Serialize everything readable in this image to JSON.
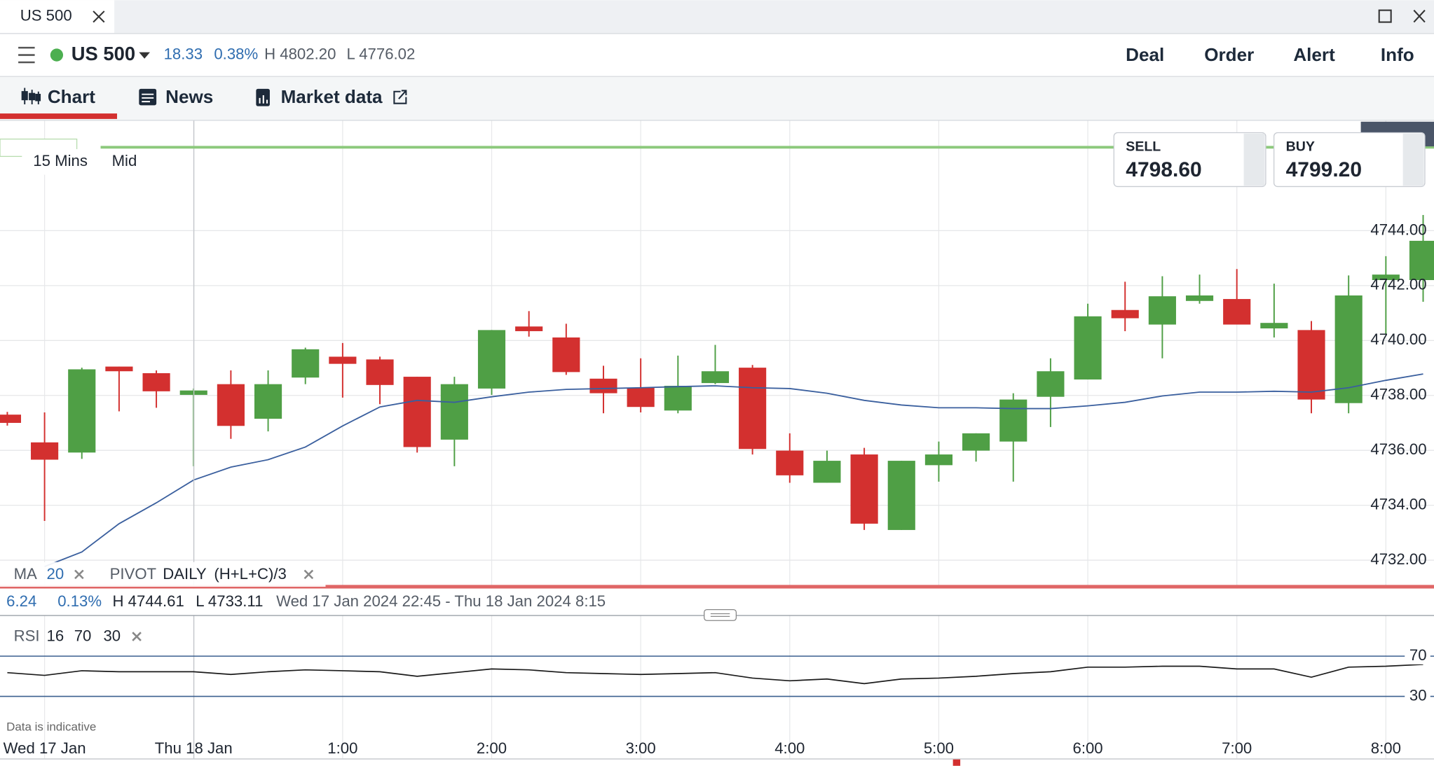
{
  "window": {
    "tab": "US 500"
  },
  "header": {
    "instrument": "US 500",
    "change": "18.33",
    "change_pct": "0.38%",
    "high": "H 4802.20",
    "low": "L 4776.02",
    "actions": [
      "Deal",
      "Order",
      "Alert",
      "Info"
    ]
  },
  "tabs": [
    "Chart",
    "News",
    "Market data"
  ],
  "chart_settings": {
    "interval": "15 Mins",
    "price_type": "Mid"
  },
  "quote": {
    "sell_label": "SELL",
    "sell": "4798.60",
    "buy_label": "BUY",
    "buy": "4799.20"
  },
  "indicators": {
    "ma": {
      "label": "MA",
      "period": "20"
    },
    "pivot": {
      "label": "PIVOT",
      "period": "DAILY",
      "formula": "(H+L+C)/3"
    },
    "rsi": {
      "label": "RSI",
      "period": "16",
      "upper": "70",
      "lower": "30"
    }
  },
  "range_stats": {
    "change": "6.24",
    "change_pct": "0.13%",
    "high": "H 4744.61",
    "low": "L 4733.11",
    "period": "Wed 17 Jan 2024 22:45 - Thu 18 Jan 2024 8:15"
  },
  "footer": {
    "note": "Data is indicative"
  },
  "chart_data": [
    {
      "type": "candlestick",
      "categories": [
        null,
        "Wed 17 Jan",
        null,
        null,
        null,
        "Thu 18 Jan",
        null,
        null,
        null,
        "1:00",
        null,
        null,
        null,
        "2:00",
        null,
        null,
        null,
        "3:00",
        null,
        null,
        null,
        "4:00",
        null,
        null,
        null,
        "5:00",
        null,
        null,
        null,
        "6:00",
        null,
        null,
        null,
        "7:00",
        null,
        null,
        null,
        "8:00",
        null
      ],
      "open": [
        4737.3,
        4736.29,
        4735.92,
        4739.05,
        4738.81,
        4738.02,
        4738.41,
        4737.15,
        4738.65,
        4739.41,
        4739.31,
        4738.68,
        4736.39,
        4738.25,
        4740.51,
        4740.11,
        4738.61,
        4738.28,
        4737.45,
        4738.45,
        4739.01,
        4735.99,
        4734.82,
        4735.85,
        4733.1,
        4735.46,
        4735.99,
        4736.32,
        4737.95,
        4738.58,
        4741.11,
        4740.58,
        4741.44,
        4741.51,
        4740.44,
        4740.38,
        4737.72,
        4742.2,
        4742.2
      ],
      "high": [
        4737.4,
        4737.38,
        4739.01,
        4739.05,
        4738.91,
        4738.25,
        4738.91,
        4738.91,
        4739.74,
        4739.91,
        4739.41,
        4738.68,
        4738.68,
        4740.38,
        4741.07,
        4740.61,
        4739.08,
        4739.35,
        4739.45,
        4739.84,
        4739.11,
        4736.62,
        4735.99,
        4736.09,
        4735.62,
        4736.32,
        4736.62,
        4738.08,
        4739.35,
        4741.34,
        4742.14,
        4742.34,
        4742.4,
        4742.6,
        4742.07,
        4740.71,
        4742.37,
        4743.07,
        4744.57
      ],
      "low": [
        4736.9,
        4733.43,
        4735.69,
        4737.42,
        4737.55,
        4735.42,
        4736.42,
        4736.69,
        4738.41,
        4737.92,
        4737.68,
        4735.92,
        4735.42,
        4738.02,
        4740.14,
        4738.75,
        4737.35,
        4737.38,
        4737.35,
        4738.41,
        4735.85,
        4734.82,
        4734.82,
        4733.1,
        4733.1,
        4734.86,
        4735.59,
        4734.86,
        4736.85,
        4738.58,
        4740.34,
        4739.35,
        4741.34,
        4740.58,
        4740.11,
        4737.35,
        4737.35,
        4740.24,
        4741.41
      ],
      "close": [
        4737.0,
        4735.66,
        4738.95,
        4738.88,
        4738.15,
        4738.18,
        4736.89,
        4738.41,
        4739.68,
        4739.15,
        4738.38,
        4736.12,
        4738.41,
        4740.38,
        4740.34,
        4738.85,
        4738.08,
        4737.58,
        4738.35,
        4738.88,
        4736.05,
        4735.09,
        4735.62,
        4733.33,
        4735.62,
        4735.85,
        4736.62,
        4737.85,
        4738.88,
        4740.88,
        4740.81,
        4741.61,
        4741.64,
        4740.58,
        4740.64,
        4737.85,
        4741.64,
        4742.4,
        4743.63
      ],
      "up_color": "#4f9f45",
      "down_color": "#d3302f",
      "ma": {
        "color": "#3a5f9e",
        "values": [
          null,
          4731.77,
          4732.3,
          4733.33,
          4734.09,
          4734.92,
          4735.39,
          4735.66,
          4736.12,
          4736.89,
          4737.58,
          4737.82,
          4737.75,
          4737.95,
          4738.12,
          4738.22,
          4738.25,
          4738.28,
          4738.32,
          4738.35,
          4738.28,
          4738.25,
          4738.08,
          4737.82,
          4737.65,
          4737.55,
          4737.55,
          4737.52,
          4737.52,
          4737.62,
          4737.75,
          4737.98,
          4738.12,
          4738.12,
          4738.15,
          4738.12,
          4738.28,
          4738.55,
          4738.78
        ]
      },
      "ylim": [
        4731.1,
        4748
      ],
      "yticks": [
        {
          "value": 4732,
          "label": "4732.00"
        },
        {
          "value": 4734,
          "label": "4734.00"
        },
        {
          "value": 4736,
          "label": "4736.00"
        },
        {
          "value": 4738,
          "label": "4738.00"
        },
        {
          "value": 4740,
          "label": "4740.00"
        },
        {
          "value": 4742,
          "label": "4742.00"
        },
        {
          "value": 4744,
          "label": "4744.00"
        }
      ],
      "grid": true
    },
    {
      "type": "line",
      "values": [
        53.6,
        50.9,
        55.5,
        54.5,
        54.5,
        54.5,
        51.8,
        54.5,
        56.4,
        55.5,
        54.5,
        50.0,
        53.6,
        57.3,
        56.4,
        53.6,
        52.7,
        51.8,
        52.7,
        53.6,
        48.2,
        45.5,
        47.3,
        42.7,
        47.3,
        48.2,
        50.0,
        52.7,
        54.5,
        59.1,
        59.1,
        60.0,
        60.0,
        57.3,
        57.3,
        49.1,
        59.1,
        60.0,
        61.8
      ],
      "color": "#1a1a1a",
      "level_color": "#3a5f8f",
      "ylim": [
        0,
        100
      ],
      "yticks": [
        70,
        30
      ]
    }
  ]
}
